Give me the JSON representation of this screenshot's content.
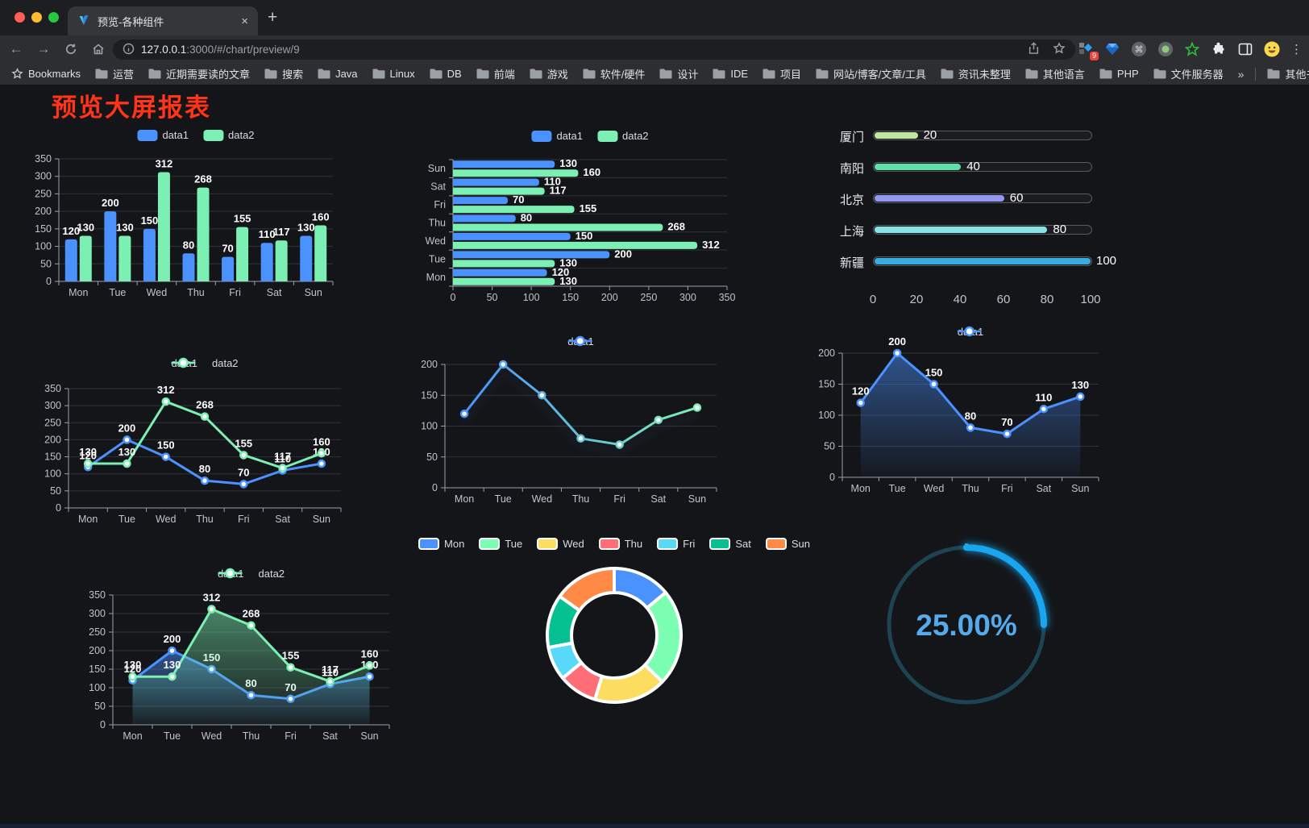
{
  "browser": {
    "tab_title": "预览-各种组件",
    "url_host": "127.0.0.1",
    "url_path": ":3000/#/chart/preview/9",
    "bookmarks_label": "Bookmarks",
    "bookmark_folders": [
      "运营",
      "近期需要读的文章",
      "搜索",
      "Java",
      "Linux",
      "DB",
      "前端",
      "游戏",
      "软件/硬件",
      "设计",
      "IDE",
      "项目",
      "网站/博客/文章/工具",
      "资讯未整理",
      "其他语言",
      "PHP",
      "文件服务器"
    ],
    "overflow_chevron": "»",
    "other_bookmarks": "其他书签",
    "extensions_badge": "9",
    "icons": {
      "close": "×",
      "plus": "+",
      "kebab": "⋮",
      "back": "←",
      "forward": "→",
      "cmd": "⌘"
    }
  },
  "content": {
    "title": "预览大屏报表",
    "title_color": "#ff3418"
  },
  "chart_data": [
    {
      "id": "bar-vertical",
      "type": "bar",
      "categories": [
        "Mon",
        "Tue",
        "Wed",
        "Thu",
        "Fri",
        "Sat",
        "Sun"
      ],
      "series": [
        {
          "name": "data1",
          "color": "#4a92ff",
          "values": [
            120,
            200,
            150,
            80,
            70,
            110,
            130
          ]
        },
        {
          "name": "data2",
          "color": "#7cf0b2",
          "values": [
            130,
            130,
            312,
            268,
            155,
            117,
            160
          ]
        }
      ],
      "ylim": [
        0,
        350
      ],
      "ystep": 50,
      "legend_position": "top",
      "grid": true
    },
    {
      "id": "bar-horizontal",
      "type": "bar-h",
      "categories": [
        "Mon",
        "Tue",
        "Wed",
        "Thu",
        "Fri",
        "Sat",
        "Sun"
      ],
      "series": [
        {
          "name": "data1",
          "color": "#4a92ff",
          "values": [
            120,
            200,
            150,
            80,
            70,
            110,
            130
          ]
        },
        {
          "name": "data2",
          "color": "#7cf0b2",
          "values": [
            130,
            130,
            312,
            268,
            155,
            117,
            160
          ]
        }
      ],
      "xlim": [
        0,
        350
      ],
      "xstep": 50,
      "legend_position": "top",
      "grid": true
    },
    {
      "id": "progress-bars",
      "type": "progress",
      "items": [
        {
          "label": "厦门",
          "value": 20,
          "color": "#c0e79e"
        },
        {
          "label": "南阳",
          "value": 40,
          "color": "#5fe0ab"
        },
        {
          "label": "北京",
          "value": 60,
          "color": "#9298ef"
        },
        {
          "label": "上海",
          "value": 80,
          "color": "#87e2e2"
        },
        {
          "label": "新疆",
          "value": 100,
          "color": "#38abdf"
        }
      ],
      "xlim": [
        0,
        100
      ],
      "xticks": [
        0,
        20,
        40,
        60,
        80,
        100
      ]
    },
    {
      "id": "line-two",
      "type": "line",
      "categories": [
        "Mon",
        "Tue",
        "Wed",
        "Thu",
        "Fri",
        "Sat",
        "Sun"
      ],
      "series": [
        {
          "name": "data1",
          "color": "#4a92ff",
          "values": [
            120,
            200,
            150,
            80,
            70,
            110,
            130
          ]
        },
        {
          "name": "data2",
          "color": "#7cf0b2",
          "values": [
            130,
            130,
            312,
            268,
            155,
            117,
            160
          ]
        }
      ],
      "ylim": [
        0,
        350
      ],
      "ystep": 50,
      "show_labels": true,
      "legend_position": "top",
      "grid": true
    },
    {
      "id": "line-gradient",
      "type": "line",
      "categories": [
        "Mon",
        "Tue",
        "Wed",
        "Thu",
        "Fri",
        "Sat",
        "Sun"
      ],
      "series": [
        {
          "name": "data1",
          "gradient": [
            "#4a92ff",
            "#7cf0b2"
          ],
          "values": [
            120,
            200,
            150,
            80,
            70,
            110,
            130
          ]
        }
      ],
      "ylim": [
        0,
        200
      ],
      "ystep": 50,
      "show_labels": false,
      "legend_position": "top",
      "grid": true
    },
    {
      "id": "area-single",
      "type": "line",
      "area": true,
      "categories": [
        "Mon",
        "Tue",
        "Wed",
        "Thu",
        "Fri",
        "Sat",
        "Sun"
      ],
      "series": [
        {
          "name": "data1",
          "color": "#4a92ff",
          "values": [
            120,
            200,
            150,
            80,
            70,
            110,
            130
          ]
        }
      ],
      "ylim": [
        0,
        200
      ],
      "ystep": 50,
      "show_labels": true,
      "legend_position": "top",
      "grid": true
    },
    {
      "id": "area-two",
      "type": "line",
      "area": true,
      "categories": [
        "Mon",
        "Tue",
        "Wed",
        "Thu",
        "Fri",
        "Sat",
        "Sun"
      ],
      "series": [
        {
          "name": "data1",
          "color": "#4a92ff",
          "values": [
            120,
            200,
            150,
            80,
            70,
            110,
            130
          ]
        },
        {
          "name": "data2",
          "color": "#7cf0b2",
          "values": [
            130,
            130,
            312,
            268,
            155,
            117,
            160
          ]
        }
      ],
      "ylim": [
        0,
        350
      ],
      "ystep": 50,
      "show_labels": true,
      "legend_position": "top",
      "grid": true
    },
    {
      "id": "donut",
      "type": "pie",
      "inner_ratio": 0.64,
      "border_color": "#ffffff",
      "slices": [
        {
          "label": "Mon",
          "value": 120,
          "color": "#4992ff"
        },
        {
          "label": "Tue",
          "value": 200,
          "color": "#7cffb2"
        },
        {
          "label": "Wed",
          "value": 150,
          "color": "#fddd60"
        },
        {
          "label": "Thu",
          "value": 80,
          "color": "#ff6e76"
        },
        {
          "label": "Fri",
          "value": 70,
          "color": "#58d9f9"
        },
        {
          "label": "Sat",
          "value": 110,
          "color": "#05c091"
        },
        {
          "label": "Sun",
          "value": 130,
          "color": "#ff8a45"
        }
      ],
      "legend_position": "top"
    },
    {
      "id": "ring",
      "type": "gauge",
      "value_percent": 25,
      "label": "25.00%",
      "arc_color": "#18a6f0",
      "track_color": "#1e4352",
      "text_color": "#55aaeb"
    }
  ],
  "axis_style": {
    "label_color": "#bfc3cd",
    "axis_color": "#9ba0ad",
    "grid_color": "#30323a",
    "value_label_color": "#ffffff"
  }
}
